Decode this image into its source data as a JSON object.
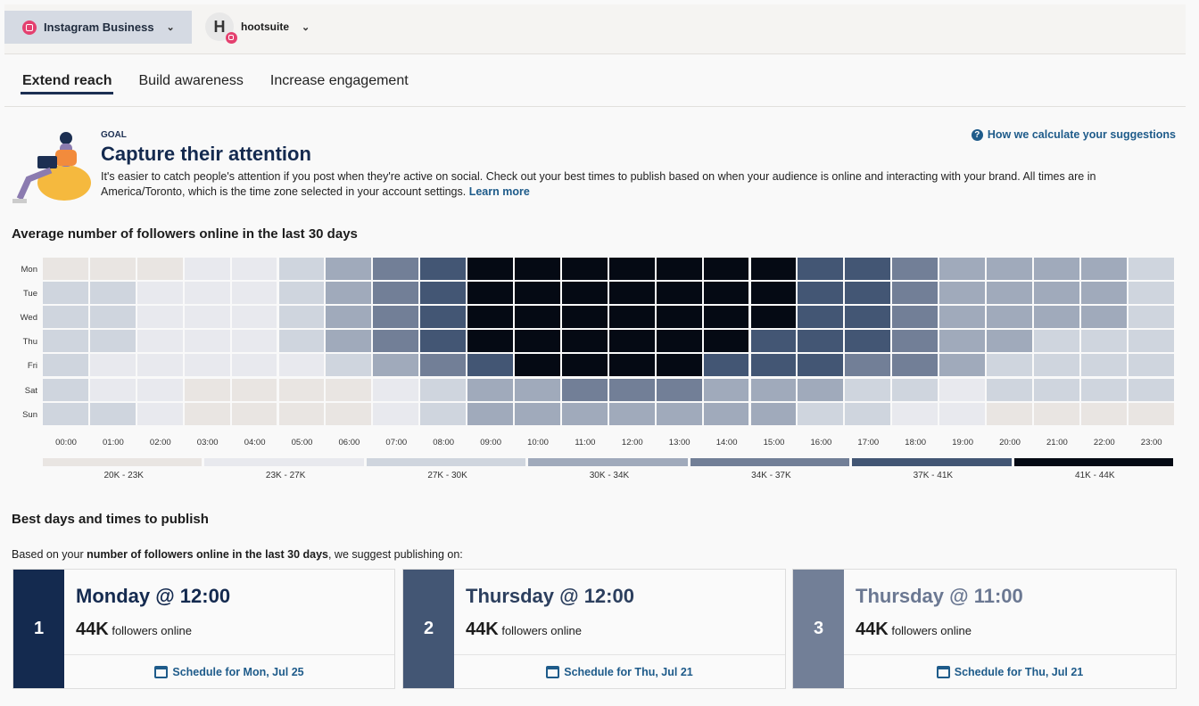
{
  "header": {
    "account_label": "Instagram Business",
    "profile_initial": "H",
    "profile_name": "hootsuite"
  },
  "tabs": [
    {
      "label": "Extend reach",
      "active": true
    },
    {
      "label": "Build awareness"
    },
    {
      "label": "Increase engagement"
    }
  ],
  "goal": {
    "kicker": "GOAL",
    "title": "Capture their attention",
    "description": "It's easier to catch people's attention if you post when they're active on social. Check out your best times to publish based on when your audience is online and interacting with your brand. All times are in America/Toronto, which is the time zone selected in your account settings.",
    "learn_more": "Learn more",
    "how_link": "How we calculate your suggestions"
  },
  "heatmap_title": "Average number of followers online in the last 30 days",
  "chart_data": {
    "type": "heatmap",
    "rows": [
      "Mon",
      "Tue",
      "Wed",
      "Thu",
      "Fri",
      "Sat",
      "Sun"
    ],
    "columns": [
      "00:00",
      "01:00",
      "02:00",
      "03:00",
      "04:00",
      "05:00",
      "06:00",
      "07:00",
      "08:00",
      "09:00",
      "10:00",
      "11:00",
      "12:00",
      "13:00",
      "14:00",
      "15:00",
      "16:00",
      "17:00",
      "18:00",
      "19:00",
      "20:00",
      "21:00",
      "22:00",
      "23:00"
    ],
    "legend": [
      "20K - 23K",
      "23K - 27K",
      "27K - 30K",
      "30K - 34K",
      "34K - 37K",
      "37K - 41K",
      "41K - 44K"
    ],
    "colors": [
      "#e9e5e2",
      "#e8e9ee",
      "#cfd5de",
      "#a0aabb",
      "#727f97",
      "#435674",
      "#050a14"
    ],
    "values_bucket_index": [
      [
        0,
        0,
        0,
        1,
        1,
        2,
        3,
        4,
        5,
        6,
        6,
        6,
        6,
        6,
        6,
        6,
        5,
        5,
        4,
        3,
        3,
        3,
        3,
        2
      ],
      [
        2,
        2,
        1,
        1,
        1,
        2,
        3,
        4,
        5,
        6,
        6,
        6,
        6,
        6,
        6,
        6,
        5,
        5,
        4,
        3,
        3,
        3,
        3,
        2
      ],
      [
        2,
        2,
        1,
        1,
        1,
        2,
        3,
        4,
        5,
        6,
        6,
        6,
        6,
        6,
        6,
        6,
        5,
        5,
        4,
        3,
        3,
        3,
        3,
        2
      ],
      [
        2,
        2,
        1,
        1,
        1,
        2,
        3,
        4,
        5,
        6,
        6,
        6,
        6,
        6,
        6,
        5,
        5,
        5,
        4,
        3,
        3,
        2,
        2,
        2
      ],
      [
        2,
        1,
        1,
        1,
        1,
        1,
        2,
        3,
        4,
        5,
        6,
        6,
        6,
        6,
        5,
        5,
        5,
        4,
        4,
        3,
        2,
        2,
        2,
        2
      ],
      [
        2,
        1,
        1,
        0,
        0,
        0,
        0,
        1,
        2,
        3,
        3,
        4,
        4,
        4,
        3,
        3,
        3,
        2,
        2,
        1,
        2,
        2,
        2,
        2
      ],
      [
        2,
        2,
        1,
        0,
        0,
        0,
        0,
        1,
        2,
        3,
        3,
        3,
        3,
        3,
        3,
        3,
        2,
        2,
        1,
        1,
        0,
        0,
        0,
        0
      ]
    ]
  },
  "best": {
    "title": "Best days and times to publish",
    "intro_pre": "Based on your ",
    "intro_bold": "number of followers online in the last 30 days",
    "intro_post": ", we suggest publishing on:",
    "cards": [
      {
        "rank": "1",
        "time": "Monday @ 12:00",
        "count": "44K",
        "count_label": "followers online",
        "schedule": "Schedule for Mon, Jul 25",
        "color": "#142a4f",
        "title_color": "#142a4f"
      },
      {
        "rank": "2",
        "time": "Thursday @ 12:00",
        "count": "44K",
        "count_label": "followers online",
        "schedule": "Schedule for Thu, Jul 21",
        "color": "#435674",
        "title_color": "#2c3f5e"
      },
      {
        "rank": "3",
        "time": "Thursday @ 11:00",
        "count": "44K",
        "count_label": "followers online",
        "schedule": "Schedule for Thu, Jul 21",
        "color": "#727f97",
        "title_color": "#6b7892"
      }
    ]
  }
}
